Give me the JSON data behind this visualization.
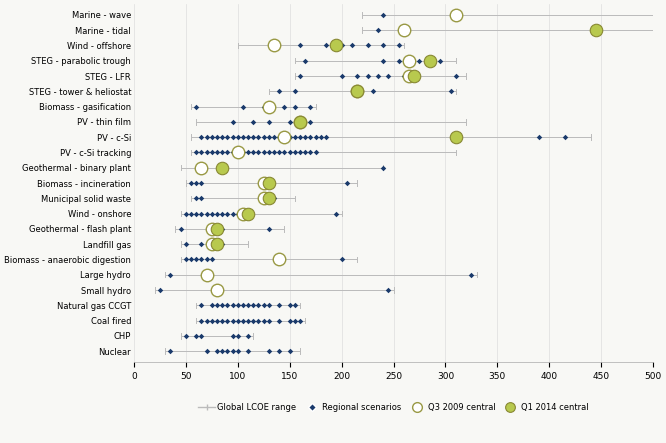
{
  "categories": [
    "Marine - wave",
    "Marine - tidal",
    "Wind - offshore",
    "STEG - parabolic trough",
    "STEG - LFR",
    "STEG - tower & heliostat",
    "Biomass - gasification",
    "PV - thin film",
    "PV - c-Si",
    "PV - c-Si tracking",
    "Geothermal - binary plant",
    "Biomass - incineration",
    "Municipal solid waste",
    "Wind - onshore",
    "Geothermal - flash plant",
    "Landfill gas",
    "Biomass - anaerobic digestion",
    "Large hydro",
    "Small hydro",
    "Natural gas CCGT",
    "Coal fired",
    "CHP",
    "Nuclear"
  ],
  "global_range": [
    [
      220,
      500
    ],
    [
      220,
      500
    ],
    [
      100,
      260
    ],
    [
      155,
      310
    ],
    [
      155,
      320
    ],
    [
      130,
      310
    ],
    [
      55,
      175
    ],
    [
      60,
      320
    ],
    [
      55,
      440
    ],
    [
      55,
      310
    ],
    [
      45,
      240
    ],
    [
      50,
      215
    ],
    [
      55,
      155
    ],
    [
      45,
      200
    ],
    [
      40,
      145
    ],
    [
      45,
      110
    ],
    [
      45,
      215
    ],
    [
      30,
      330
    ],
    [
      20,
      250
    ],
    [
      60,
      160
    ],
    [
      60,
      165
    ],
    [
      45,
      115
    ],
    [
      30,
      160
    ]
  ],
  "q3_2009_central": [
    310,
    260,
    135,
    265,
    265,
    215,
    130,
    160,
    145,
    100,
    65,
    125,
    125,
    105,
    75,
    75,
    140,
    70,
    80,
    null,
    null,
    null,
    null
  ],
  "q1_2014_central": [
    null,
    445,
    195,
    285,
    270,
    215,
    null,
    160,
    310,
    null,
    85,
    130,
    130,
    110,
    80,
    80,
    null,
    null,
    null,
    null,
    null,
    null,
    null
  ],
  "regional_scenarios": [
    [
      [
        240
      ]
    ],
    [
      [
        235
      ]
    ],
    [
      [
        160
      ],
      [
        185
      ],
      [
        195
      ],
      [
        200
      ],
      [
        210
      ],
      [
        225
      ],
      [
        240
      ],
      [
        255
      ]
    ],
    [
      [
        165
      ],
      [
        240
      ],
      [
        255
      ],
      [
        275
      ],
      [
        295
      ]
    ],
    [
      [
        160
      ],
      [
        200
      ],
      [
        215
      ],
      [
        225
      ],
      [
        235
      ],
      [
        245
      ],
      [
        260
      ],
      [
        310
      ]
    ],
    [
      [
        140
      ],
      [
        155
      ],
      [
        230
      ],
      [
        305
      ]
    ],
    [
      [
        60
      ],
      [
        105
      ],
      [
        125
      ],
      [
        145
      ],
      [
        155
      ],
      [
        170
      ]
    ],
    [
      [
        95
      ],
      [
        115
      ],
      [
        130
      ],
      [
        150
      ],
      [
        170
      ]
    ],
    [
      [
        65
      ],
      [
        70
      ],
      [
        75
      ],
      [
        80
      ],
      [
        85
      ],
      [
        90
      ],
      [
        95
      ],
      [
        100
      ],
      [
        105
      ],
      [
        110
      ],
      [
        115
      ],
      [
        120
      ],
      [
        125
      ],
      [
        130
      ],
      [
        135
      ],
      [
        140
      ],
      [
        145
      ],
      [
        150
      ],
      [
        155
      ],
      [
        160
      ],
      [
        165
      ],
      [
        170
      ],
      [
        175
      ],
      [
        180
      ],
      [
        185
      ],
      [
        390
      ],
      [
        415
      ]
    ],
    [
      [
        60
      ],
      [
        65
      ],
      [
        70
      ],
      [
        75
      ],
      [
        80
      ],
      [
        85
      ],
      [
        90
      ],
      [
        95
      ],
      [
        100
      ],
      [
        105
      ],
      [
        110
      ],
      [
        115
      ],
      [
        120
      ],
      [
        125
      ],
      [
        130
      ],
      [
        135
      ],
      [
        140
      ],
      [
        145
      ],
      [
        150
      ],
      [
        155
      ],
      [
        160
      ],
      [
        165
      ],
      [
        170
      ],
      [
        175
      ]
    ],
    [
      [
        240
      ]
    ],
    [
      [
        55
      ],
      [
        60
      ],
      [
        65
      ],
      [
        205
      ]
    ],
    [
      [
        60
      ],
      [
        65
      ],
      [
        130
      ],
      [
        135
      ]
    ],
    [
      [
        50
      ],
      [
        55
      ],
      [
        60
      ],
      [
        65
      ],
      [
        70
      ],
      [
        75
      ],
      [
        80
      ],
      [
        85
      ],
      [
        90
      ],
      [
        95
      ],
      [
        100
      ],
      [
        105
      ],
      [
        110
      ],
      [
        195
      ]
    ],
    [
      [
        45
      ],
      [
        75
      ],
      [
        80
      ],
      [
        85
      ],
      [
        130
      ]
    ],
    [
      [
        50
      ],
      [
        65
      ],
      [
        75
      ],
      [
        85
      ]
    ],
    [
      [
        50
      ],
      [
        55
      ],
      [
        60
      ],
      [
        65
      ],
      [
        70
      ],
      [
        75
      ],
      [
        200
      ]
    ],
    [
      [
        35
      ],
      [
        325
      ]
    ],
    [
      [
        25
      ],
      [
        245
      ]
    ],
    [
      [
        65
      ],
      [
        75
      ],
      [
        80
      ],
      [
        85
      ],
      [
        90
      ],
      [
        95
      ],
      [
        100
      ],
      [
        105
      ],
      [
        110
      ],
      [
        115
      ],
      [
        120
      ],
      [
        125
      ],
      [
        130
      ],
      [
        140
      ],
      [
        150
      ],
      [
        155
      ]
    ],
    [
      [
        65
      ],
      [
        70
      ],
      [
        75
      ],
      [
        80
      ],
      [
        85
      ],
      [
        90
      ],
      [
        95
      ],
      [
        100
      ],
      [
        105
      ],
      [
        110
      ],
      [
        115
      ],
      [
        120
      ],
      [
        125
      ],
      [
        130
      ],
      [
        140
      ],
      [
        150
      ],
      [
        155
      ],
      [
        160
      ]
    ],
    [
      [
        50
      ],
      [
        60
      ],
      [
        65
      ],
      [
        95
      ],
      [
        100
      ],
      [
        110
      ]
    ],
    [
      [
        35
      ],
      [
        70
      ],
      [
        80
      ],
      [
        85
      ],
      [
        90
      ],
      [
        95
      ],
      [
        100
      ],
      [
        110
      ],
      [
        130
      ],
      [
        140
      ],
      [
        150
      ]
    ]
  ],
  "colors": {
    "global_range_line": "#bbbbbb",
    "regional": "#1a3a6b",
    "q3_2009_face": "#ffffff",
    "q3_2009_edge": "#999944",
    "q1_2014_face": "#b8c94e",
    "q1_2014_edge": "#888833"
  },
  "xlim": [
    0,
    500
  ],
  "xticks": [
    0,
    50,
    100,
    150,
    200,
    250,
    300,
    350,
    400,
    450,
    500
  ],
  "background": "#f8f8f5",
  "figsize": [
    6.66,
    4.43
  ],
  "dpi": 100
}
